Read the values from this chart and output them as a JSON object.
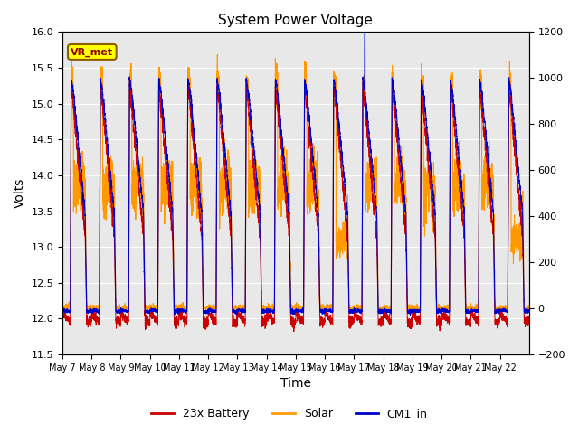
{
  "title": "System Power Voltage",
  "xlabel": "Time",
  "ylabel": "Volts",
  "ylim_left": [
    11.5,
    16.0
  ],
  "ylim_right": [
    -200,
    1200
  ],
  "background_color": "#ffffff",
  "plot_bg_color": "#e8e8e8",
  "grid_color": "#ffffff",
  "annotation_text": "VR_met",
  "annotation_box_color": "#ffff00",
  "annotation_box_edge": "#8B6000",
  "legend_entries": [
    "23x Battery",
    "Solar",
    "CM1_in"
  ],
  "legend_colors": [
    "#cc0000",
    "#ff9900",
    "#0000cc"
  ],
  "x_tick_labels": [
    "May 7",
    "May 8",
    "May 9",
    "May 10",
    "May 11",
    "May 12",
    "May 13",
    "May 14",
    "May 15",
    "May 16",
    "May 17",
    "May 18",
    "May 19",
    "May 20",
    "May 21",
    "May 22"
  ],
  "n_days": 16,
  "seed": 42,
  "yleft_ticks": [
    11.5,
    12.0,
    12.5,
    13.0,
    13.5,
    14.0,
    14.5,
    15.0,
    15.5,
    16.0
  ],
  "yright_ticks": [
    -200,
    0,
    200,
    400,
    600,
    800,
    1000,
    1200
  ]
}
